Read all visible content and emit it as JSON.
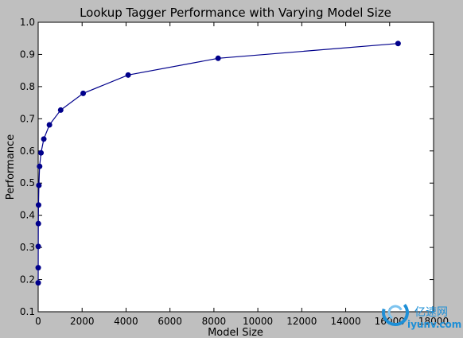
{
  "chart_data": {
    "type": "line",
    "title": "Lookup Tagger Performance with Varying Model Size",
    "xlabel": "Model Size",
    "ylabel": "Performance",
    "xlim": [
      0,
      18000
    ],
    "ylim": [
      0.1,
      1.0
    ],
    "xticks": [
      "0",
      "2000",
      "4000",
      "6000",
      "8000",
      "10000",
      "12000",
      "14000",
      "16000",
      "18000"
    ],
    "yticks": [
      "0.1",
      "0.2",
      "0.3",
      "0.4",
      "0.5",
      "0.6",
      "0.7",
      "0.8",
      "0.9",
      "1.0"
    ],
    "grid": false,
    "series": [
      {
        "x": [
          1,
          2,
          4,
          8,
          16,
          32,
          64,
          128,
          256,
          512,
          1024,
          2048,
          4096,
          8192,
          16384
        ],
        "y": [
          0.19,
          0.237,
          0.303,
          0.374,
          0.432,
          0.493,
          0.552,
          0.594,
          0.637,
          0.681,
          0.727,
          0.779,
          0.836,
          0.888,
          0.934
        ],
        "color": "#00008b"
      }
    ]
  },
  "watermark": {
    "line1": "亿速网",
    "line2": "iyunv.com"
  },
  "colors": {
    "background": "#bfbfbf",
    "plot_area": "#ffffff",
    "series": "#00008b",
    "watermark": "#1e8fd6"
  }
}
